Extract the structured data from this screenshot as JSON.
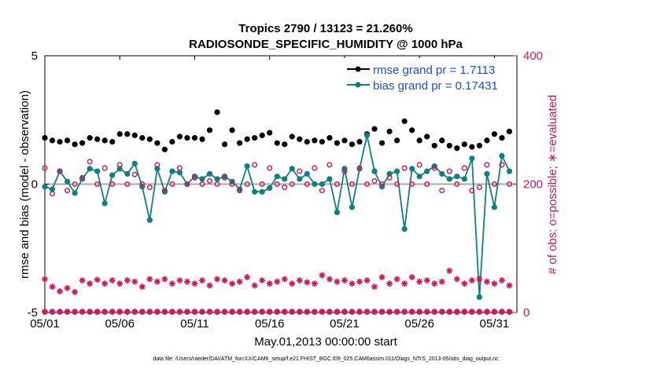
{
  "chart_data": {
    "type": "line",
    "title": "Tropics 2790 / 13123 = 21.260%",
    "subtitle": "RADIOSONDE_SPECIFIC_HUMIDITY @ 1000 hPa",
    "xlabel": "May.01,2013 00:00:00 start",
    "ylabel": "rmse and bias (model - observation)",
    "y2label": "# of obs: o=possible; ∗=evaluated",
    "xlim": [
      0,
      31.5
    ],
    "ylim": [
      -5,
      5
    ],
    "y2lim": [
      0,
      400
    ],
    "x_ticks": [
      0,
      5,
      10,
      15,
      20,
      25,
      30
    ],
    "x_tick_labels": [
      "05/01",
      "05/06",
      "05/11",
      "05/16",
      "05/21",
      "05/26",
      "05/31"
    ],
    "y_ticks": [
      -5,
      0,
      5
    ],
    "y_tick_labels": [
      "-5",
      "0",
      "5"
    ],
    "y2_ticks": [
      0,
      200,
      400
    ],
    "y2_tick_labels": [
      "0",
      "200",
      "400"
    ],
    "zero_line": 0,
    "legend": {
      "placement": "top-right",
      "entries": [
        "rmse grand pr = 1.7113",
        "bias grand pr = 0.17431"
      ]
    },
    "footer": "data file: /Users/raeder/DAI/ATM_forcXX/CAM6_setup/f.e21.FHIST_BGC.f09_025.CAM6assim.011/Diags_NTrS_2013-05/obs_diag_output.nc",
    "series": [
      {
        "name": "rmse",
        "axis": "left",
        "color": "#000000",
        "marker": "dot",
        "x": [
          0.0,
          0.5,
          1.0,
          1.5,
          2.0,
          2.5,
          3.0,
          3.5,
          4.0,
          4.5,
          5.0,
          5.5,
          6.0,
          6.5,
          7.0,
          7.5,
          8.0,
          8.5,
          9.0,
          9.5,
          10.0,
          10.5,
          11.0,
          11.5,
          12.0,
          12.5,
          13.0,
          13.5,
          14.0,
          14.5,
          15.0,
          15.5,
          16.0,
          16.5,
          17.0,
          17.5,
          18.0,
          18.5,
          19.0,
          19.5,
          20.0,
          20.5,
          21.0,
          21.5,
          22.0,
          22.5,
          23.0,
          23.5,
          24.0,
          24.5,
          25.0,
          25.5,
          26.0,
          26.5,
          27.0,
          27.5,
          28.0,
          28.5,
          29.0,
          29.5,
          30.0,
          30.5,
          31.0
        ],
        "y": [
          1.8,
          1.7,
          1.65,
          1.7,
          1.55,
          1.6,
          1.8,
          1.75,
          1.7,
          1.65,
          1.95,
          1.95,
          1.9,
          1.8,
          1.75,
          1.6,
          1.35,
          1.65,
          1.85,
          1.8,
          1.8,
          1.75,
          2.1,
          2.8,
          1.55,
          2.1,
          1.6,
          1.75,
          1.8,
          1.9,
          2.0,
          1.6,
          1.55,
          1.85,
          1.75,
          1.65,
          1.7,
          1.65,
          1.8,
          1.6,
          1.7,
          1.55,
          1.65,
          1.95,
          2.15,
          1.6,
          2.05,
          1.7,
          2.45,
          2.1,
          1.7,
          1.85,
          1.5,
          1.7,
          1.5,
          1.4,
          1.55,
          1.45,
          1.5,
          1.7,
          1.95,
          1.8,
          2.05
        ]
      },
      {
        "name": "bias",
        "axis": "left",
        "color": "#0e8080",
        "marker": "dot",
        "x": [
          0.0,
          0.5,
          1.0,
          1.5,
          2.0,
          2.5,
          3.0,
          3.5,
          4.0,
          4.5,
          5.0,
          5.5,
          6.0,
          6.5,
          7.0,
          7.5,
          8.0,
          8.5,
          9.0,
          9.5,
          10.0,
          10.5,
          11.0,
          11.5,
          12.0,
          12.5,
          13.0,
          13.5,
          14.0,
          14.5,
          15.0,
          15.5,
          16.0,
          16.5,
          17.0,
          17.5,
          18.0,
          18.5,
          19.0,
          19.5,
          20.0,
          20.5,
          21.0,
          21.5,
          22.0,
          22.5,
          23.0,
          23.5,
          24.0,
          24.5,
          25.0,
          25.5,
          26.0,
          26.5,
          27.0,
          27.5,
          28.0,
          28.5,
          29.0,
          29.5,
          30.0,
          30.5,
          31.0
        ],
        "y": [
          -0.1,
          -0.2,
          0.5,
          0.1,
          -0.35,
          0.2,
          0.6,
          0.5,
          -0.75,
          0.35,
          0.6,
          0.4,
          0.8,
          -0.1,
          -1.4,
          0.6,
          -0.3,
          0.5,
          0.45,
          0.0,
          0.3,
          0.2,
          0.4,
          0.2,
          0.3,
          0.1,
          -0.2,
          0.7,
          -0.3,
          -0.3,
          -0.15,
          0.3,
          0.2,
          0.6,
          0.2,
          0.4,
          0.0,
          0.0,
          0.2,
          -1.1,
          0.6,
          -0.9,
          0.6,
          1.9,
          0.5,
          -0.1,
          0.4,
          0.5,
          -1.75,
          0.6,
          0.3,
          0.5,
          0.7,
          0.4,
          0.2,
          0.3,
          0.2,
          1.0,
          -4.4,
          0.4,
          -0.9,
          1.1,
          0.5
        ]
      },
      {
        "name": "obs possible",
        "axis": "right",
        "color": "#cc1a5a",
        "marker": "open-circle",
        "x": [
          0.0,
          0.5,
          1.0,
          1.5,
          2.0,
          2.5,
          3.0,
          3.5,
          4.0,
          4.5,
          5.0,
          5.5,
          6.0,
          6.5,
          7.0,
          7.5,
          8.0,
          8.5,
          9.0,
          9.5,
          10.0,
          10.5,
          11.0,
          11.5,
          12.0,
          12.5,
          13.0,
          13.5,
          14.0,
          14.5,
          15.0,
          15.5,
          16.0,
          16.5,
          17.0,
          17.5,
          18.0,
          18.5,
          19.0,
          19.5,
          20.0,
          20.5,
          21.0,
          21.5,
          22.0,
          22.5,
          23.0,
          23.5,
          24.0,
          24.5,
          25.0,
          25.5,
          26.0,
          26.5,
          27.0,
          27.5,
          28.0,
          28.5,
          29.0,
          29.5,
          30.0,
          30.5,
          31.0
        ],
        "y": [
          225,
          185,
          220,
          190,
          200,
          210,
          235,
          200,
          225,
          200,
          230,
          200,
          215,
          200,
          195,
          230,
          190,
          200,
          225,
          200,
          210,
          200,
          205,
          200,
          210,
          200,
          190,
          200,
          230,
          200,
          225,
          200,
          195,
          200,
          220,
          200,
          225,
          190,
          230,
          200,
          220,
          200,
          225,
          200,
          205,
          200,
          210,
          200,
          225,
          200,
          230,
          200,
          225,
          190,
          220,
          200,
          225,
          190,
          195,
          230,
          200,
          230,
          200
        ]
      },
      {
        "name": "obs evaluated",
        "axis": "right",
        "color": "#cc1a5a",
        "marker": "asterisk",
        "x": [
          0.0,
          0.5,
          1.0,
          1.5,
          2.0,
          2.5,
          3.0,
          3.5,
          4.0,
          4.5,
          5.0,
          5.5,
          6.0,
          6.5,
          7.0,
          7.5,
          8.0,
          8.5,
          9.0,
          9.5,
          10.0,
          10.5,
          11.0,
          11.5,
          12.0,
          12.5,
          13.0,
          13.5,
          14.0,
          14.5,
          15.0,
          15.5,
          16.0,
          16.5,
          17.0,
          17.5,
          18.0,
          18.5,
          19.0,
          19.5,
          20.0,
          20.5,
          21.0,
          21.5,
          22.0,
          22.5,
          23.0,
          23.5,
          24.0,
          24.5,
          25.0,
          25.5,
          26.0,
          26.5,
          27.0,
          27.5,
          28.0,
          28.5,
          29.0,
          29.5,
          30.0,
          30.5,
          31.0
        ],
        "y": [
          52,
          40,
          33,
          38,
          32,
          50,
          45,
          51,
          45,
          50,
          45,
          50,
          48,
          40,
          52,
          48,
          52,
          45,
          50,
          48,
          45,
          50,
          42,
          52,
          50,
          45,
          48,
          55,
          42,
          50,
          45,
          48,
          52,
          45,
          50,
          47,
          45,
          58,
          52,
          48,
          50,
          45,
          48,
          50,
          40,
          55,
          45,
          52,
          45,
          55,
          48,
          50,
          45,
          48,
          65,
          52,
          45,
          50,
          52,
          48,
          45,
          50,
          42
        ]
      },
      {
        "name": "obs possible baseline",
        "axis": "right",
        "color": "#cc1a5a",
        "marker": "open-circle",
        "x": [
          0.0,
          0.5,
          1.0,
          1.5,
          2.0,
          2.5,
          3.0,
          3.5,
          4.0,
          4.5,
          5.0,
          5.5,
          6.0,
          6.5,
          7.0,
          7.5,
          8.0,
          8.5,
          9.0,
          9.5,
          10.0,
          10.5,
          11.0,
          11.5,
          12.0,
          12.5,
          13.0,
          13.5,
          14.0,
          14.5,
          15.0,
          15.5,
          16.0,
          16.5,
          17.0,
          17.5,
          18.0,
          18.5,
          19.0,
          19.5,
          20.0,
          20.5,
          21.0,
          21.5,
          22.0,
          22.5,
          23.0,
          23.5,
          24.0,
          24.5,
          25.0,
          25.5,
          26.0,
          26.5,
          27.0,
          27.5,
          28.0,
          28.5,
          29.0,
          29.5,
          30.0,
          30.5,
          31.0
        ],
        "y": [
          1,
          1,
          1,
          1,
          1,
          1,
          1,
          1,
          1,
          1,
          1,
          1,
          1,
          1,
          1,
          1,
          1,
          1,
          1,
          1,
          1,
          1,
          1,
          1,
          1,
          1,
          1,
          1,
          1,
          1,
          1,
          1,
          1,
          1,
          1,
          1,
          1,
          1,
          1,
          1,
          1,
          1,
          1,
          1,
          1,
          1,
          1,
          1,
          1,
          1,
          1,
          1,
          1,
          1,
          1,
          1,
          1,
          1,
          1,
          1,
          1,
          1,
          1
        ]
      },
      {
        "name": "obs evaluated baseline",
        "axis": "right",
        "color": "#cc1a5a",
        "marker": "asterisk",
        "x": [
          0.0,
          0.5,
          1.0,
          1.5,
          2.0,
          2.5,
          3.0,
          3.5,
          4.0,
          4.5,
          5.0,
          5.5,
          6.0,
          6.5,
          7.0,
          7.5,
          8.0,
          8.5,
          9.0,
          9.5,
          10.0,
          10.5,
          11.0,
          11.5,
          12.0,
          12.5,
          13.0,
          13.5,
          14.0,
          14.5,
          15.0,
          15.5,
          16.0,
          16.5,
          17.0,
          17.5,
          18.0,
          18.5,
          19.0,
          19.5,
          20.0,
          20.5,
          21.0,
          21.5,
          22.0,
          22.5,
          23.0,
          23.5,
          24.0,
          24.5,
          25.0,
          25.5,
          26.0,
          26.5,
          27.0,
          27.5,
          28.0,
          28.5,
          29.0,
          29.5,
          30.0,
          30.5,
          31.0
        ],
        "y": [
          1,
          1,
          1,
          1,
          1,
          1,
          1,
          1,
          1,
          1,
          1,
          1,
          1,
          1,
          1,
          1,
          1,
          1,
          1,
          1,
          1,
          1,
          1,
          1,
          1,
          1,
          1,
          1,
          1,
          1,
          1,
          1,
          1,
          1,
          1,
          1,
          1,
          1,
          1,
          1,
          1,
          1,
          1,
          1,
          1,
          1,
          1,
          1,
          1,
          1,
          1,
          1,
          1,
          1,
          1,
          1,
          1,
          1,
          1,
          1,
          1,
          1,
          1
        ]
      }
    ]
  }
}
